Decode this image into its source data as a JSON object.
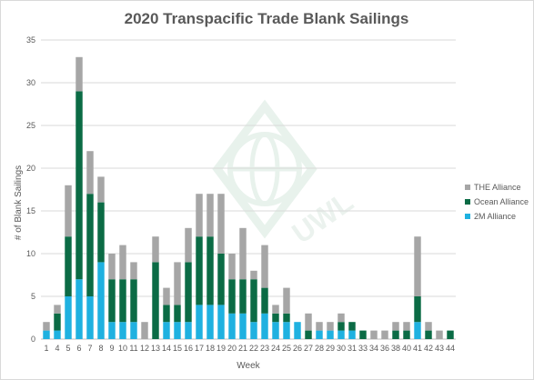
{
  "chart_data": {
    "type": "bar",
    "stacked": true,
    "title": "2020 Transpacific Trade Blank Sailings",
    "xlabel": "Week",
    "ylabel": "# of Blank Sailings",
    "ylim": [
      0,
      35
    ],
    "yticks": [
      0,
      5,
      10,
      15,
      20,
      25,
      30,
      35
    ],
    "grid": true,
    "legend_position": "right",
    "categories": [
      "1",
      "4",
      "5",
      "6",
      "7",
      "8",
      "9",
      "10",
      "11",
      "12",
      "13",
      "14",
      "15",
      "16",
      "17",
      "18",
      "19",
      "20",
      "21",
      "22",
      "23",
      "24",
      "25",
      "26",
      "27",
      "28",
      "29",
      "30",
      "31",
      "33",
      "34",
      "36",
      "38",
      "40",
      "41",
      "42",
      "43",
      "44"
    ],
    "series": [
      {
        "name": "2M Alliance",
        "color": "#1fb1e0",
        "values": [
          1,
          1,
          5,
          7,
          5,
          9,
          2,
          2,
          2,
          0,
          0,
          2,
          2,
          2,
          4,
          4,
          4,
          3,
          3,
          2,
          3,
          2,
          2,
          2,
          0,
          1,
          1,
          1,
          1,
          0,
          0,
          0,
          0,
          0,
          2,
          0,
          0,
          0
        ]
      },
      {
        "name": "Ocean Alliance",
        "color": "#0b6b45",
        "values": [
          0,
          2,
          7,
          22,
          12,
          7,
          5,
          5,
          5,
          0,
          9,
          2,
          2,
          7,
          8,
          8,
          6,
          4,
          4,
          5,
          3,
          1,
          1,
          0,
          1,
          0,
          0,
          1,
          1,
          1,
          0,
          0,
          1,
          1,
          3,
          1,
          0,
          1
        ]
      },
      {
        "name": "THE Alliance",
        "color": "#a6a6a6",
        "values": [
          1,
          1,
          6,
          4,
          5,
          3,
          3,
          4,
          2,
          2,
          3,
          2,
          5,
          4,
          5,
          5,
          7,
          3,
          6,
          1,
          5,
          1,
          3,
          0,
          2,
          1,
          1,
          1,
          0,
          0,
          1,
          1,
          1,
          1,
          7,
          1,
          1,
          0
        ]
      }
    ],
    "watermark_text": "UWL"
  }
}
